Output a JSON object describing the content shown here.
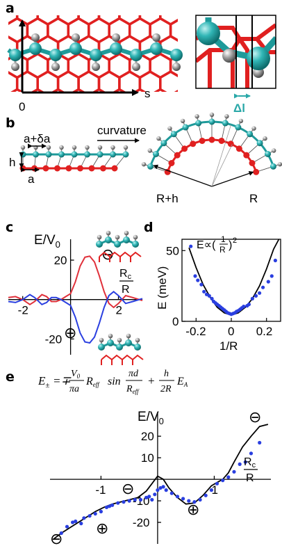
{
  "panels": {
    "a": {
      "label": "a",
      "origin_label": "0",
      "axis_label": "s",
      "inset_label": "Δl"
    },
    "b": {
      "label": "b",
      "top_spacing": "a+δa",
      "bottom_spacing": "a",
      "height_label": "h",
      "arrow_label": "curvature",
      "outer_radius": "R+h",
      "inner_radius": "R"
    },
    "c": {
      "label": "c",
      "ylabel": "E/V",
      "ylabel_sub": "0",
      "xlabel_num": "R",
      "xlabel_num_sub": "c",
      "xlabel_den": "R",
      "minus_sign": "⊖",
      "plus_sign": "⊕"
    },
    "d": {
      "label": "d",
      "formula_prefix": "E∝(",
      "formula_num": "1",
      "formula_den": "R",
      "formula_suffix": ")",
      "formula_power": "2"
    },
    "e": {
      "label": "e",
      "eq_lhs": "E",
      "eq_lhs_sub": "±",
      "eq_eq": "=∓",
      "eq_frac1_num": "V",
      "eq_frac1_num_sub": "0",
      "eq_frac1_den": "πa",
      "eq_R1": "R",
      "eq_R1_sub": "eff",
      "eq_sin": "sin",
      "eq_frac2_num": "πd",
      "eq_frac2_den": "R",
      "eq_frac2_den_sub": "eff",
      "eq_plus": "+",
      "eq_frac3_num": "h",
      "eq_frac3_den": "2R",
      "eq_EA": "E",
      "eq_EA_sub": "A",
      "ylabel": "E/V",
      "ylabel_sub": "0",
      "xlabel_num": "R",
      "xlabel_num_sub": "c",
      "xlabel_den": "R",
      "minus_sign": "⊖",
      "plus_sign": "⊕"
    }
  },
  "chart_data": [
    {
      "panel": "c",
      "type": "line",
      "xlim": [
        -2.6,
        3.0
      ],
      "ylim": [
        -28,
        32
      ],
      "x_ticks": [
        "-2",
        "2"
      ],
      "y_ticks": [
        "20",
        "-20"
      ],
      "x_tick_values": [
        -2,
        2
      ],
      "y_tick_values": [
        20,
        -20
      ],
      "series": [
        {
          "color": "#e0303a",
          "x": [
            -2.6,
            -2.3,
            -2.0,
            -1.7,
            -1.5,
            -1.2,
            -1.0,
            -0.8,
            -0.6,
            -0.4,
            -0.2,
            0.0,
            0.2,
            0.4,
            0.6,
            0.8,
            1.0,
            1.2,
            1.4,
            1.6,
            1.8,
            2.0,
            2.3,
            2.6,
            3.0
          ],
          "y": [
            1,
            1.5,
            0,
            -2.5,
            -1,
            2.5,
            1.5,
            -1,
            -1,
            0,
            1.5,
            3,
            9,
            17,
            21.5,
            22,
            19,
            12,
            4,
            -2,
            -4,
            -2,
            2,
            1,
            -0.5
          ]
        },
        {
          "color": "#2a3fe0",
          "x": [
            -2.6,
            -2.3,
            -2.0,
            -1.7,
            -1.5,
            -1.2,
            -1.0,
            -0.8,
            -0.6,
            -0.4,
            -0.2,
            0.0,
            0.2,
            0.4,
            0.6,
            0.8,
            1.0,
            1.2,
            1.4,
            1.6,
            1.8,
            2.0,
            2.3,
            2.6,
            3.0
          ],
          "y": [
            -1,
            -1.5,
            0,
            2.5,
            1,
            -2.5,
            -1.5,
            1,
            1,
            0,
            -1.5,
            -3,
            -9,
            -17,
            -21.5,
            -22,
            -19,
            -12,
            -4,
            2,
            4,
            2,
            -2,
            -1,
            0.5
          ]
        }
      ]
    },
    {
      "panel": "d",
      "type": "scatter",
      "xlabel": "1/R",
      "ylabel": "E (meV)",
      "xlim": [
        -0.28,
        0.28
      ],
      "ylim": [
        0,
        58
      ],
      "x_ticks": [
        "-0.2",
        "0",
        "0.2"
      ],
      "y_ticks": [
        "0",
        "50"
      ],
      "x_tick_values": [
        -0.2,
        0,
        0.2
      ],
      "y_tick_values": [
        0,
        50
      ],
      "points": [
        [
          -0.23,
          53
        ],
        [
          -0.205,
          32
        ],
        [
          -0.19,
          29
        ],
        [
          -0.17,
          26
        ],
        [
          -0.155,
          21
        ],
        [
          -0.14,
          19
        ],
        [
          -0.125,
          18
        ],
        [
          -0.11,
          16
        ],
        [
          -0.1,
          14
        ],
        [
          -0.09,
          13
        ],
        [
          -0.08,
          12
        ],
        [
          -0.07,
          11
        ],
        [
          -0.06,
          10
        ],
        [
          -0.05,
          9
        ],
        [
          -0.04,
          8
        ],
        [
          -0.03,
          7
        ],
        [
          -0.02,
          6
        ],
        [
          -0.01,
          5.5
        ],
        [
          0.0,
          5
        ],
        [
          0.01,
          5.5
        ],
        [
          0.02,
          6
        ],
        [
          0.03,
          7
        ],
        [
          0.04,
          7.5
        ],
        [
          0.05,
          8.5
        ],
        [
          0.06,
          9.5
        ],
        [
          0.07,
          10.5
        ],
        [
          0.09,
          11
        ],
        [
          0.1,
          12
        ],
        [
          0.12,
          16
        ],
        [
          0.14,
          18
        ],
        [
          0.16,
          20
        ],
        [
          0.18,
          24
        ],
        [
          0.21,
          28
        ],
        [
          0.23,
          32
        ],
        [
          0.25,
          43
        ]
      ],
      "fit": {
        "x": [
          -0.24,
          -0.2,
          -0.16,
          -0.12,
          -0.08,
          -0.04,
          0.0,
          0.04,
          0.08,
          0.12,
          0.16,
          0.2,
          0.24,
          0.27
        ],
        "y": [
          52,
          38,
          26,
          17,
          10,
          6,
          4.5,
          6,
          10,
          16,
          25,
          37,
          51,
          58
        ]
      }
    },
    {
      "panel": "e",
      "type": "line",
      "xlim": [
        -1.9,
        2.0
      ],
      "ylim": [
        -30,
        32
      ],
      "x_ticks": [
        "-1",
        "1"
      ],
      "y_ticks": [
        "20",
        "10",
        "-10",
        "-20"
      ],
      "x_tick_values": [
        -1,
        1
      ],
      "y_tick_values": [
        20,
        10,
        -10,
        -20
      ],
      "curve": {
        "x": [
          -1.85,
          -1.7,
          -1.55,
          -1.4,
          -1.25,
          -1.1,
          -0.95,
          -0.8,
          -0.65,
          -0.5,
          -0.35,
          -0.2,
          -0.1,
          0.0,
          0.1,
          0.2,
          0.35,
          0.5,
          0.65,
          0.8,
          0.95,
          1.05,
          1.15,
          1.25,
          1.35,
          1.5,
          1.65,
          1.8,
          1.95
        ],
        "y": [
          -28,
          -25,
          -22.5,
          -20,
          -17.5,
          -15,
          -13,
          -11.5,
          -10.5,
          -9.5,
          -8.5,
          -5.5,
          -2,
          1.5,
          0,
          -4,
          -8.5,
          -11.5,
          -11,
          -7.5,
          -3,
          -1.5,
          0,
          3,
          8,
          15,
          20,
          24.5,
          25.5
        ]
      },
      "points": [
        [
          -1.7,
          -25
        ],
        [
          -1.6,
          -22
        ],
        [
          -1.5,
          -20
        ],
        [
          -1.45,
          -19.5
        ],
        [
          -1.35,
          -20.5
        ],
        [
          -1.3,
          -18
        ],
        [
          -1.2,
          -17
        ],
        [
          -1.1,
          -16
        ],
        [
          -1.0,
          -15
        ],
        [
          -0.9,
          -13
        ],
        [
          -0.85,
          -12.5
        ],
        [
          -0.8,
          -12
        ],
        [
          -0.7,
          -11
        ],
        [
          -0.6,
          -10.5
        ],
        [
          -0.5,
          -10
        ],
        [
          -0.4,
          -9.5
        ],
        [
          -0.3,
          -9.5
        ],
        [
          -0.2,
          -8.5
        ],
        [
          -0.15,
          -8
        ],
        [
          -0.1,
          -9.5
        ],
        [
          -0.05,
          -7
        ],
        [
          0.0,
          -5
        ],
        [
          0.05,
          -4
        ],
        [
          0.1,
          -3.5
        ],
        [
          0.15,
          -5
        ],
        [
          0.25,
          -6.5
        ],
        [
          0.35,
          -8
        ],
        [
          0.45,
          -9
        ],
        [
          0.55,
          -10
        ],
        [
          0.65,
          -10.5
        ],
        [
          0.75,
          -9.5
        ],
        [
          0.85,
          -7.5
        ],
        [
          0.95,
          -5
        ],
        [
          1.05,
          -2
        ],
        [
          1.15,
          -0.5
        ],
        [
          1.25,
          1
        ],
        [
          1.35,
          3.5
        ],
        [
          1.45,
          7
        ],
        [
          1.55,
          8
        ],
        [
          1.65,
          12
        ],
        [
          1.8,
          17
        ]
      ]
    }
  ]
}
